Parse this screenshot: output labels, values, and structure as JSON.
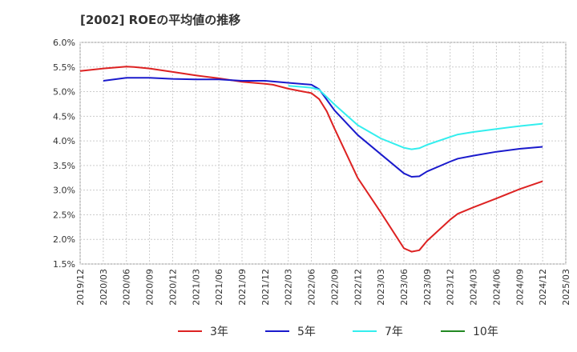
{
  "chart_data": {
    "type": "line",
    "title": "[2002]  ROEの平均値の推移",
    "xlabel": "",
    "ylabel": "",
    "ylim": [
      1.5,
      6.0
    ],
    "yticks": [
      "1.5%",
      "2.0%",
      "2.5%",
      "3.0%",
      "3.5%",
      "4.0%",
      "4.5%",
      "5.0%",
      "5.5%",
      "6.0%"
    ],
    "categories": [
      "2019/12",
      "2020/03",
      "2020/06",
      "2020/09",
      "2020/12",
      "2021/03",
      "2021/06",
      "2021/09",
      "2021/12",
      "2022/03",
      "2022/06",
      "2022/09",
      "2022/12",
      "2023/03",
      "2023/06",
      "2023/09",
      "2023/12",
      "2024/03",
      "2024/06",
      "2024/09",
      "2024/12",
      "2025/03"
    ],
    "grid": true,
    "legend_position": "bottom",
    "series": [
      {
        "name": "3年",
        "color": "#dd2222",
        "x": [
          "2019/12",
          "2020/03",
          "2020/06",
          "2020/07",
          "2020/09",
          "2020/12",
          "2021/03",
          "2021/06",
          "2021/09",
          "2021/12",
          "2022/01",
          "2022/03",
          "2022/05",
          "2022/06",
          "2022/07",
          "2022/08",
          "2022/09",
          "2022/12",
          "2023/03",
          "2023/06",
          "2023/07",
          "2023/08",
          "2023/09",
          "2023/12",
          "2024/01",
          "2024/03",
          "2024/06",
          "2024/09",
          "2024/12"
        ],
        "y": [
          5.42,
          5.47,
          5.51,
          5.5,
          5.47,
          5.4,
          5.33,
          5.27,
          5.2,
          5.16,
          5.14,
          5.06,
          5.0,
          4.97,
          4.85,
          4.6,
          4.25,
          3.25,
          2.55,
          1.82,
          1.75,
          1.78,
          1.97,
          2.4,
          2.52,
          2.65,
          2.83,
          3.02,
          3.18
        ]
      },
      {
        "name": "5年",
        "color": "#1a1acc",
        "x": [
          "2020/03",
          "2020/06",
          "2020/09",
          "2020/12",
          "2021/03",
          "2021/06",
          "2021/09",
          "2021/12",
          "2022/03",
          "2022/06",
          "2022/07",
          "2022/09",
          "2022/12",
          "2023/03",
          "2023/06",
          "2023/07",
          "2023/08",
          "2023/09",
          "2023/12",
          "2024/01",
          "2024/03",
          "2024/06",
          "2024/09",
          "2024/12"
        ],
        "y": [
          5.22,
          5.28,
          5.28,
          5.26,
          5.25,
          5.25,
          5.22,
          5.22,
          5.18,
          5.14,
          5.05,
          4.62,
          4.12,
          3.73,
          3.34,
          3.27,
          3.28,
          3.38,
          3.58,
          3.64,
          3.7,
          3.78,
          3.84,
          3.88
        ]
      },
      {
        "name": "7年",
        "color": "#33eeee",
        "x": [
          "2022/03",
          "2022/06",
          "2022/07",
          "2022/09",
          "2022/12",
          "2023/03",
          "2023/06",
          "2023/07",
          "2023/08",
          "2023/09",
          "2023/12",
          "2024/01",
          "2024/03",
          "2024/06",
          "2024/09",
          "2024/12"
        ],
        "y": [
          5.12,
          5.08,
          5.04,
          4.74,
          4.32,
          4.05,
          3.86,
          3.83,
          3.85,
          3.92,
          4.08,
          4.13,
          4.18,
          4.24,
          4.3,
          4.35
        ]
      },
      {
        "name": "10年",
        "color": "#228822",
        "x": [],
        "y": []
      }
    ]
  }
}
